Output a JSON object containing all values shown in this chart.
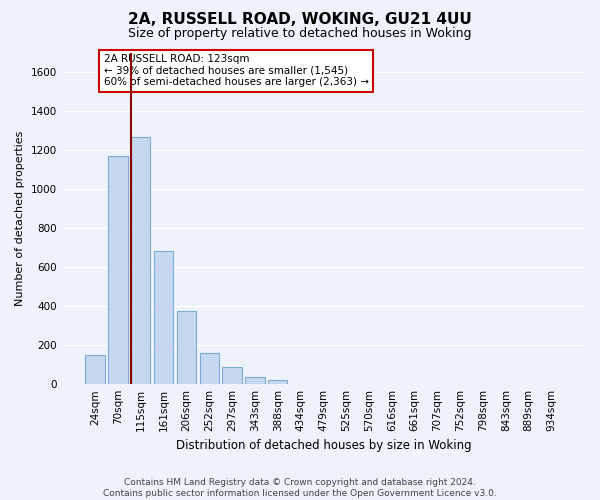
{
  "title": "2A, RUSSELL ROAD, WOKING, GU21 4UU",
  "subtitle": "Size of property relative to detached houses in Woking",
  "xlabel": "Distribution of detached houses by size in Woking",
  "ylabel": "Number of detached properties",
  "bar_labels": [
    "24sqm",
    "70sqm",
    "115sqm",
    "161sqm",
    "206sqm",
    "252sqm",
    "297sqm",
    "343sqm",
    "388sqm",
    "434sqm",
    "479sqm",
    "525sqm",
    "570sqm",
    "616sqm",
    "661sqm",
    "707sqm",
    "752sqm",
    "798sqm",
    "843sqm",
    "889sqm",
    "934sqm"
  ],
  "bar_values": [
    150,
    1170,
    1265,
    685,
    375,
    160,
    90,
    35,
    20,
    0,
    0,
    0,
    0,
    0,
    0,
    0,
    0,
    0,
    0,
    0,
    0
  ],
  "bar_color": "#c5d8f0",
  "bar_edge_color": "#7dadd4",
  "vline_color": "#8b0000",
  "vline_x_index": 2.5,
  "ylim": [
    0,
    1700
  ],
  "yticks": [
    0,
    200,
    400,
    600,
    800,
    1000,
    1200,
    1400,
    1600
  ],
  "annotation_title": "2A RUSSELL ROAD: 123sqm",
  "annotation_line1": "← 39% of detached houses are smaller (1,545)",
  "annotation_line2": "60% of semi-detached houses are larger (2,363) →",
  "annotation_box_facecolor": "#ffffff",
  "annotation_box_edgecolor": "#cc0000",
  "footer_line1": "Contains HM Land Registry data © Crown copyright and database right 2024.",
  "footer_line2": "Contains public sector information licensed under the Open Government Licence v3.0.",
  "bg_color": "#eef2fb",
  "grid_color": "#ffffff",
  "title_fontsize": 11,
  "subtitle_fontsize": 9,
  "ylabel_fontsize": 8,
  "xlabel_fontsize": 8.5,
  "tick_fontsize": 7.5,
  "footer_fontsize": 6.5
}
